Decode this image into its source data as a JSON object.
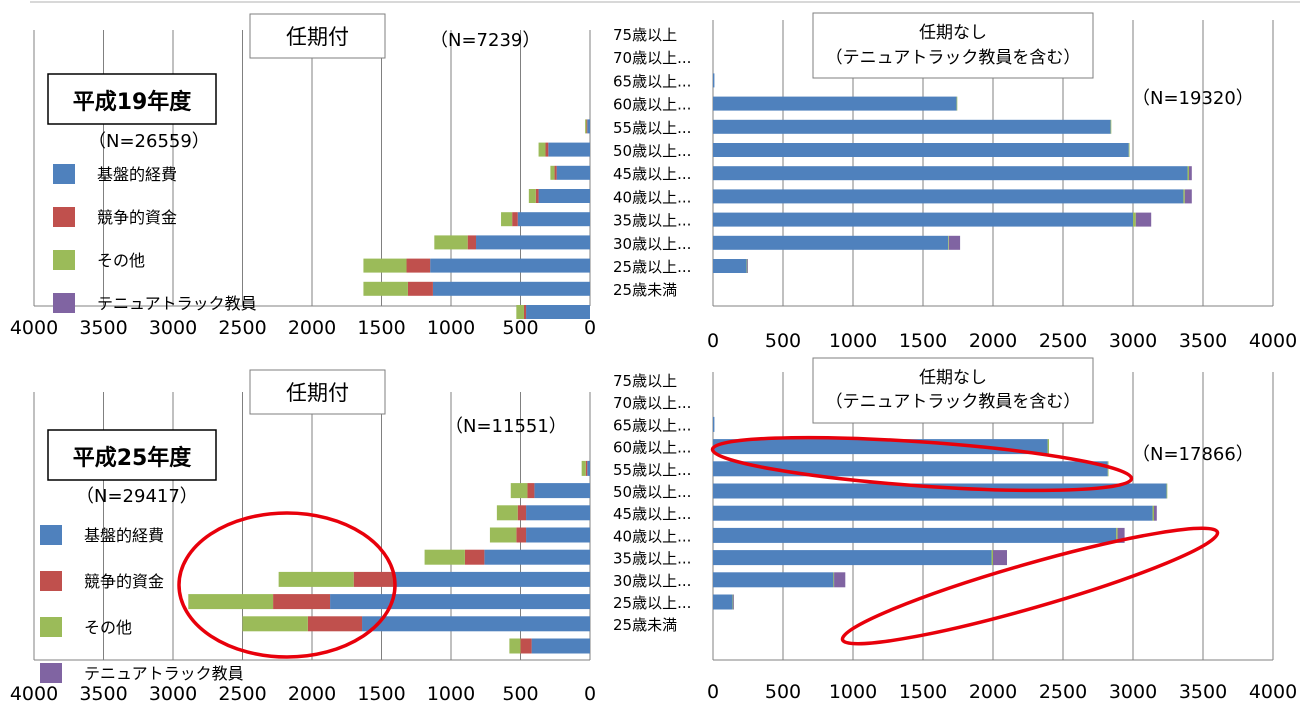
{
  "colors": {
    "base": "#4f81bd",
    "competitive": "#c0504d",
    "other": "#9bbb59",
    "tenure_track": "#8064a2",
    "annotation_ellipse": "#e8000b",
    "gridline": "#808080"
  },
  "chart_data": [
    {
      "type": "bar",
      "orientation": "horizontal",
      "stacked": true,
      "axis_reversed": true,
      "title": "任期付",
      "n_label": "（N=7239）",
      "panel_label": "平成19年度",
      "panel_n_label": "（N=26559）",
      "xlim": [
        0,
        4000
      ],
      "xticks": [
        "4000",
        "3500",
        "3000",
        "2500",
        "2000",
        "1500",
        "1000",
        "500",
        "0"
      ],
      "categories": [
        "75歳以上",
        "70歳以上...",
        "65歳以上...",
        "60歳以上...",
        "55歳以上...",
        "50歳以上...",
        "45歳以上...",
        "40歳以上...",
        "35歳以上...",
        "30歳以上...",
        "25歳以上...",
        "25歳未満"
      ],
      "series": [
        {
          "name": "基盤的経費",
          "color_key": "base",
          "values": [
            0,
            0,
            20,
            300,
            240,
            370,
            520,
            820,
            1150,
            1130,
            460,
            0
          ]
        },
        {
          "name": "競争的資金",
          "color_key": "competitive",
          "values": [
            0,
            0,
            5,
            20,
            15,
            20,
            40,
            60,
            170,
            180,
            15,
            0
          ]
        },
        {
          "name": "その他",
          "color_key": "other",
          "values": [
            0,
            0,
            10,
            50,
            30,
            50,
            80,
            240,
            310,
            320,
            55,
            0
          ]
        },
        {
          "name": "テニュアトラック教員",
          "color_key": "tenure_track",
          "values": [
            0,
            0,
            0,
            0,
            0,
            0,
            0,
            0,
            0,
            0,
            0,
            0
          ]
        }
      ],
      "legend_placement": "left",
      "grid": true
    },
    {
      "type": "bar",
      "orientation": "horizontal",
      "stacked": true,
      "title": "任期なし（テニュアトラック教員を含む）",
      "title_lines": [
        "任期なし",
        "（テニュアトラック教員を含む）"
      ],
      "n_label": "（N=19320）",
      "xlim": [
        0,
        4000
      ],
      "xticks": [
        "0",
        "500",
        "1000",
        "1500",
        "2000",
        "2500",
        "3000",
        "3500",
        "4000"
      ],
      "categories": [
        "75歳以上",
        "70歳以上...",
        "65歳以上...",
        "60歳以上...",
        "55歳以上...",
        "50歳以上...",
        "45歳以上...",
        "40歳以上...",
        "35歳以上...",
        "30歳以上...",
        "25歳以上...",
        "25歳未満"
      ],
      "series": [
        {
          "name": "基盤的経費",
          "color_key": "base",
          "values": [
            0,
            0,
            10,
            1740,
            2840,
            2970,
            3390,
            3360,
            3000,
            1680,
            240,
            0
          ]
        },
        {
          "name": "競争的資金",
          "color_key": "competitive",
          "values": [
            0,
            0,
            0,
            0,
            0,
            0,
            0,
            0,
            0,
            0,
            0,
            0
          ]
        },
        {
          "name": "その他",
          "color_key": "other",
          "values": [
            0,
            0,
            0,
            5,
            5,
            5,
            10,
            10,
            20,
            5,
            5,
            0
          ]
        },
        {
          "name": "テニュアトラック教員",
          "color_key": "tenure_track",
          "values": [
            0,
            0,
            0,
            0,
            0,
            0,
            20,
            50,
            110,
            80,
            5,
            0
          ]
        }
      ],
      "grid": true
    },
    {
      "type": "bar",
      "orientation": "horizontal",
      "stacked": true,
      "axis_reversed": true,
      "title": "任期付",
      "n_label": "（N=11551）",
      "panel_label": "平成25年度",
      "panel_n_label": "（N=29417）",
      "xlim": [
        0,
        4000
      ],
      "xticks": [
        "4000",
        "3500",
        "3000",
        "2500",
        "2000",
        "1500",
        "1000",
        "500",
        "0"
      ],
      "categories": [
        "75歳以上",
        "70歳以上...",
        "65歳以上...",
        "60歳以上...",
        "55歳以上...",
        "50歳以上...",
        "45歳以上...",
        "40歳以上...",
        "35歳以上...",
        "30歳以上...",
        "25歳以上...",
        "25歳未満"
      ],
      "series": [
        {
          "name": "基盤的経費",
          "color_key": "base",
          "values": [
            0,
            0,
            20,
            400,
            460,
            460,
            760,
            1410,
            1870,
            1640,
            420,
            0
          ]
        },
        {
          "name": "競争的資金",
          "color_key": "competitive",
          "values": [
            0,
            0,
            10,
            50,
            60,
            70,
            140,
            290,
            410,
            390,
            80,
            0
          ]
        },
        {
          "name": "その他",
          "color_key": "other",
          "values": [
            0,
            0,
            30,
            120,
            150,
            190,
            290,
            540,
            610,
            470,
            80,
            0
          ]
        },
        {
          "name": "テニュアトラック教員",
          "color_key": "tenure_track",
          "values": [
            0,
            0,
            0,
            0,
            0,
            0,
            0,
            0,
            0,
            0,
            0,
            0
          ]
        }
      ],
      "legend_placement": "left",
      "grid": true
    },
    {
      "type": "bar",
      "orientation": "horizontal",
      "stacked": true,
      "title": "任期なし（テニュアトラック教員を含む）",
      "title_lines": [
        "任期なし",
        "（テニュアトラック教員を含む）"
      ],
      "n_label": "（N=17866）",
      "xlim": [
        0,
        4000
      ],
      "xticks": [
        "0",
        "500",
        "1000",
        "1500",
        "2000",
        "2500",
        "3000",
        "3500",
        "4000"
      ],
      "categories": [
        "75歳以上",
        "70歳以上...",
        "65歳以上...",
        "60歳以上...",
        "55歳以上...",
        "50歳以上...",
        "45歳以上...",
        "40歳以上...",
        "35歳以上...",
        "30歳以上...",
        "25歳以上...",
        "25歳未満"
      ],
      "series": [
        {
          "name": "基盤的経費",
          "color_key": "base",
          "values": [
            0,
            0,
            10,
            2390,
            2820,
            3240,
            3140,
            2880,
            1990,
            860,
            140,
            0
          ]
        },
        {
          "name": "競争的資金",
          "color_key": "competitive",
          "values": [
            0,
            0,
            0,
            0,
            0,
            0,
            0,
            0,
            0,
            0,
            0,
            0
          ]
        },
        {
          "name": "その他",
          "color_key": "other",
          "values": [
            0,
            0,
            0,
            10,
            5,
            5,
            10,
            10,
            10,
            5,
            5,
            0
          ]
        },
        {
          "name": "テニュアトラック教員",
          "color_key": "tenure_track",
          "values": [
            0,
            0,
            0,
            0,
            0,
            0,
            20,
            50,
            100,
            80,
            5,
            0
          ]
        }
      ],
      "grid": true
    }
  ]
}
